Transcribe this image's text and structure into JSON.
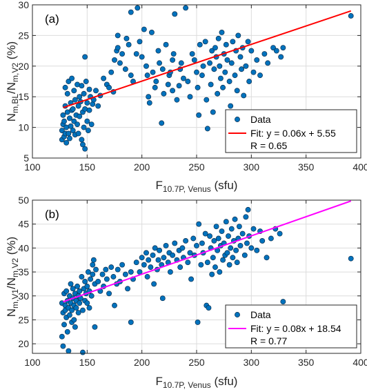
{
  "chart_data": [
    {
      "type": "scatter",
      "panel_label": "(a)",
      "ylabel": {
        "main": "N",
        "sub1": "m,BL",
        "slash": "/N",
        "sub2": "m,V2",
        "unit": " (%)"
      },
      "xlabel": {
        "main": "F",
        "sub": "10.7P, Venus",
        "unit": " (sfu)"
      },
      "xlim": [
        100,
        400
      ],
      "ylim": [
        5,
        30
      ],
      "xticks": [
        100,
        150,
        200,
        250,
        300,
        350,
        400
      ],
      "yticks": [
        5,
        10,
        15,
        20,
        25,
        30
      ],
      "grid": true,
      "legend_position": "bottom-right",
      "marker_color": "#0072BD",
      "fit_color": "#FF0000",
      "legend": {
        "data": "Data",
        "fit": "Fit: y = 0.06x + 5.55",
        "r": "R = 0.65"
      },
      "fit": {
        "slope": 0.06,
        "intercept": 5.55,
        "x_range": [
          128,
          391
        ]
      },
      "points": [
        [
          127,
          8.0
        ],
        [
          127,
          9.5
        ],
        [
          128,
          10.5
        ],
        [
          128,
          12.0
        ],
        [
          129,
          8.5
        ],
        [
          129,
          11.0
        ],
        [
          130,
          13.5
        ],
        [
          130,
          9.0
        ],
        [
          130,
          16.5
        ],
        [
          131,
          10.0
        ],
        [
          131,
          7.5
        ],
        [
          132,
          12.5
        ],
        [
          132,
          15.5
        ],
        [
          133,
          9.0
        ],
        [
          133,
          17.5
        ],
        [
          134,
          11.5
        ],
        [
          134,
          8.2
        ],
        [
          135,
          14.0
        ],
        [
          135,
          10.2
        ],
        [
          136,
          12.8
        ],
        [
          136,
          18.0
        ],
        [
          137,
          9.5
        ],
        [
          137,
          13.0
        ],
        [
          138,
          11.0
        ],
        [
          138,
          16.0
        ],
        [
          139,
          8.8
        ],
        [
          139,
          14.5
        ],
        [
          140,
          12.0
        ],
        [
          141,
          10.5
        ],
        [
          141,
          17.0
        ],
        [
          142,
          13.5
        ],
        [
          142,
          9.0
        ],
        [
          143,
          15.0
        ],
        [
          143,
          11.8
        ],
        [
          144,
          14.2
        ],
        [
          145,
          8.0
        ],
        [
          145,
          16.8
        ],
        [
          146,
          12.5
        ],
        [
          146,
          7.2
        ],
        [
          147,
          10.0
        ],
        [
          147,
          15.5
        ],
        [
          148,
          13.0
        ],
        [
          148,
          6.5
        ],
        [
          149,
          17.5
        ],
        [
          150,
          11.0
        ],
        [
          150,
          14.0
        ],
        [
          151,
          9.5
        ],
        [
          152,
          16.2
        ],
        [
          152,
          12.8
        ],
        [
          153,
          15.0
        ],
        [
          154,
          10.5
        ],
        [
          155,
          13.8
        ],
        [
          156,
          14.5
        ],
        [
          148,
          21.5
        ],
        [
          158,
          16.0
        ],
        [
          160,
          13.5
        ],
        [
          162,
          15.2
        ],
        [
          165,
          18.0
        ],
        [
          168,
          17.0
        ],
        [
          170,
          16.5
        ],
        [
          172,
          19.0
        ],
        [
          174,
          15.8
        ],
        [
          175,
          21.0
        ],
        [
          177,
          22.5
        ],
        [
          178,
          23.0
        ],
        [
          178,
          25.0
        ],
        [
          180,
          20.5
        ],
        [
          182,
          22.0
        ],
        [
          185,
          19.5
        ],
        [
          186,
          24.5
        ],
        [
          188,
          23.5
        ],
        [
          190,
          18.5
        ],
        [
          190,
          28.8
        ],
        [
          192,
          17.5
        ],
        [
          195,
          22.0
        ],
        [
          196,
          29.5
        ],
        [
          198,
          24.0
        ],
        [
          200,
          21.5
        ],
        [
          202,
          26.0
        ],
        [
          204,
          20.0
        ],
        [
          205,
          18.5
        ],
        [
          206,
          15.0
        ],
        [
          207,
          14.0
        ],
        [
          209,
          25.5
        ],
        [
          210,
          19.0
        ],
        [
          212,
          16.5
        ],
        [
          213,
          17.5
        ],
        [
          215,
          22.5
        ],
        [
          216,
          20.5
        ],
        [
          218,
          10.7
        ],
        [
          219,
          19.5
        ],
        [
          220,
          15.5
        ],
        [
          222,
          23.5
        ],
        [
          224,
          17.0
        ],
        [
          225,
          18.5
        ],
        [
          226,
          19.0
        ],
        [
          228,
          21.0
        ],
        [
          228,
          16.0
        ],
        [
          229,
          22.0
        ],
        [
          230,
          28.5
        ],
        [
          232,
          14.5
        ],
        [
          234,
          16.8
        ],
        [
          235,
          19.5
        ],
        [
          236,
          20.5
        ],
        [
          238,
          18.0
        ],
        [
          240,
          29.5
        ],
        [
          242,
          17.5
        ],
        [
          244,
          15.0
        ],
        [
          246,
          22.0
        ],
        [
          248,
          21.0
        ],
        [
          250,
          19.0
        ],
        [
          251,
          16.5
        ],
        [
          252,
          12.0
        ],
        [
          253,
          23.5
        ],
        [
          255,
          18.5
        ],
        [
          256,
          20.0
        ],
        [
          258,
          24.0
        ],
        [
          259,
          14.5
        ],
        [
          260,
          9.8
        ],
        [
          262,
          20.5
        ],
        [
          263,
          17.0
        ],
        [
          264,
          22.5
        ],
        [
          265,
          12.5
        ],
        [
          266,
          19.5
        ],
        [
          267,
          23.0
        ],
        [
          268,
          21.5
        ],
        [
          269,
          15.5
        ],
        [
          270,
          24.5
        ],
        [
          271,
          20.0
        ],
        [
          272,
          18.0
        ],
        [
          273,
          25.5
        ],
        [
          274,
          16.5
        ],
        [
          275,
          22.0
        ],
        [
          276,
          19.0
        ],
        [
          277,
          23.5
        ],
        [
          278,
          21.0
        ],
        [
          280,
          17.5
        ],
        [
          281,
          13.5
        ],
        [
          282,
          20.5
        ],
        [
          283,
          24.0
        ],
        [
          285,
          18.5
        ],
        [
          286,
          22.5
        ],
        [
          287,
          16.0
        ],
        [
          288,
          25.0
        ],
        [
          289,
          12.5
        ],
        [
          290,
          21.5
        ],
        [
          291,
          19.5
        ],
        [
          292,
          23.0
        ],
        [
          293,
          15.2
        ],
        [
          295,
          20.0
        ],
        [
          297,
          24.0
        ],
        [
          298,
          17.5
        ],
        [
          300,
          22.5
        ],
        [
          302,
          19.0
        ],
        [
          305,
          21.0
        ],
        [
          308,
          18.5
        ],
        [
          312,
          22.0
        ],
        [
          315,
          20.5
        ],
        [
          320,
          23.0
        ],
        [
          323,
          22.5
        ],
        [
          327,
          21.5
        ],
        [
          329,
          23.0
        ],
        [
          391,
          28.2
        ]
      ]
    },
    {
      "type": "scatter",
      "panel_label": "(b)",
      "ylabel": {
        "main": "N",
        "sub1": "m,V1",
        "slash": "/N",
        "sub2": "m,V2",
        "unit": " (%)"
      },
      "xlabel": {
        "main": "F",
        "sub": "10.7P, Venus",
        "unit": " (sfu)"
      },
      "xlim": [
        100,
        400
      ],
      "ylim": [
        18,
        50
      ],
      "xticks": [
        100,
        150,
        200,
        250,
        300,
        350,
        400
      ],
      "yticks": [
        20,
        25,
        30,
        35,
        40,
        45,
        50
      ],
      "grid": true,
      "legend_position": "bottom-right",
      "marker_color": "#0072BD",
      "fit_color": "#FF00FF",
      "legend": {
        "data": "Data",
        "fit": "Fit: y = 0.08x + 18.54",
        "r": "R = 0.77"
      },
      "fit": {
        "slope": 0.08,
        "intercept": 18.54,
        "x_range": [
          128,
          391
        ]
      },
      "points": [
        [
          127,
          28.5
        ],
        [
          127,
          21.5
        ],
        [
          128,
          26.5
        ],
        [
          128,
          19.5
        ],
        [
          129,
          30.5
        ],
        [
          129,
          24.0
        ],
        [
          130,
          28.0
        ],
        [
          130,
          27.0
        ],
        [
          131,
          31.0
        ],
        [
          131,
          25.5
        ],
        [
          132,
          29.0
        ],
        [
          132,
          22.5
        ],
        [
          133,
          27.5
        ],
        [
          133,
          18.5
        ],
        [
          134,
          30.0
        ],
        [
          134,
          26.0
        ],
        [
          135,
          28.5
        ],
        [
          135,
          32.5
        ],
        [
          136,
          27.0
        ],
        [
          136,
          24.5
        ],
        [
          137,
          29.5
        ],
        [
          137,
          31.5
        ],
        [
          138,
          28.0
        ],
        [
          138,
          25.0
        ],
        [
          139,
          30.5
        ],
        [
          139,
          23.5
        ],
        [
          140,
          29.0
        ],
        [
          140,
          27.5
        ],
        [
          141,
          32.0
        ],
        [
          142,
          30.0
        ],
        [
          142,
          26.5
        ],
        [
          143,
          28.5
        ],
        [
          143,
          31.0
        ],
        [
          144,
          29.5
        ],
        [
          145,
          34.0
        ],
        [
          146,
          27.0
        ],
        [
          146,
          18.2
        ],
        [
          147,
          31.5
        ],
        [
          148,
          29.0
        ],
        [
          148,
          33.0
        ],
        [
          149,
          30.5
        ],
        [
          150,
          32.0
        ],
        [
          150,
          28.5
        ],
        [
          151,
          35.0
        ],
        [
          152,
          31.0
        ],
        [
          152,
          27.5
        ],
        [
          153,
          33.5
        ],
        [
          154,
          30.0
        ],
        [
          155,
          36.5
        ],
        [
          155,
          34.5
        ],
        [
          156,
          37.5
        ],
        [
          157,
          32.5
        ],
        [
          157,
          23.5
        ],
        [
          158,
          35.5
        ],
        [
          160,
          33.0
        ],
        [
          162,
          31.0
        ],
        [
          164,
          34.5
        ],
        [
          165,
          32.0
        ],
        [
          167,
          35.5
        ],
        [
          168,
          33.5
        ],
        [
          170,
          30.5
        ],
        [
          172,
          36.0
        ],
        [
          174,
          34.0
        ],
        [
          175,
          28.0
        ],
        [
          177,
          32.5
        ],
        [
          178,
          35.5
        ],
        [
          180,
          33.0
        ],
        [
          182,
          36.5
        ],
        [
          185,
          34.5
        ],
        [
          187,
          31.5
        ],
        [
          190,
          35.0
        ],
        [
          190,
          24.5
        ],
        [
          192,
          33.5
        ],
        [
          195,
          37.0
        ],
        [
          198,
          35.0
        ],
        [
          200,
          38.0
        ],
        [
          202,
          36.5
        ],
        [
          204,
          39.0
        ],
        [
          205,
          34.0
        ],
        [
          206,
          37.5
        ],
        [
          208,
          36.0
        ],
        [
          210,
          38.5
        ],
        [
          211,
          32.5
        ],
        [
          212,
          40.0
        ],
        [
          214,
          35.5
        ],
        [
          215,
          37.5
        ],
        [
          216,
          39.5
        ],
        [
          218,
          36.5
        ],
        [
          219,
          29.5
        ],
        [
          220,
          38.0
        ],
        [
          222,
          40.5
        ],
        [
          224,
          37.0
        ],
        [
          225,
          39.0
        ],
        [
          226,
          35.0
        ],
        [
          228,
          38.5
        ],
        [
          230,
          41.0
        ],
        [
          232,
          37.5
        ],
        [
          234,
          39.5
        ],
        [
          235,
          36.0
        ],
        [
          237,
          40.0
        ],
        [
          238,
          38.0
        ],
        [
          240,
          41.5
        ],
        [
          242,
          37.0
        ],
        [
          244,
          39.0
        ],
        [
          245,
          33.5
        ],
        [
          247,
          42.0
        ],
        [
          248,
          38.5
        ],
        [
          250,
          40.5
        ],
        [
          251,
          24.5
        ],
        [
          252,
          45.0
        ],
        [
          254,
          36.5
        ],
        [
          255,
          41.0
        ],
        [
          256,
          39.0
        ],
        [
          258,
          43.0
        ],
        [
          259,
          28.0
        ],
        [
          260,
          37.0
        ],
        [
          261,
          27.5
        ],
        [
          262,
          42.5
        ],
        [
          263,
          40.0
        ],
        [
          264,
          34.5
        ],
        [
          265,
          38.0
        ],
        [
          266,
          41.5
        ],
        [
          267,
          36.0
        ],
        [
          268,
          44.5
        ],
        [
          269,
          39.5
        ],
        [
          270,
          42.0
        ],
        [
          271,
          35.0
        ],
        [
          272,
          40.5
        ],
        [
          273,
          43.5
        ],
        [
          274,
          37.5
        ],
        [
          275,
          41.0
        ],
        [
          276,
          38.5
        ],
        [
          277,
          45.5
        ],
        [
          278,
          39.0
        ],
        [
          279,
          42.5
        ],
        [
          280,
          36.5
        ],
        [
          281,
          40.0
        ],
        [
          282,
          44.0
        ],
        [
          283,
          38.0
        ],
        [
          284,
          41.5
        ],
        [
          285,
          46.0
        ],
        [
          286,
          39.5
        ],
        [
          287,
          37.0
        ],
        [
          288,
          42.0
        ],
        [
          289,
          44.5
        ],
        [
          290,
          40.5
        ],
        [
          292,
          43.0
        ],
        [
          294,
          38.5
        ],
        [
          295,
          46.5
        ],
        [
          296,
          41.0
        ],
        [
          297,
          48.0
        ],
        [
          298,
          42.5
        ],
        [
          300,
          40.0
        ],
        [
          302,
          44.0
        ],
        [
          305,
          39.5
        ],
        [
          308,
          43.5
        ],
        [
          310,
          41.5
        ],
        [
          314,
          38.0
        ],
        [
          318,
          42.0
        ],
        [
          322,
          44.0
        ],
        [
          326,
          43.0
        ],
        [
          329,
          28.8
        ],
        [
          391,
          37.8
        ]
      ]
    }
  ]
}
